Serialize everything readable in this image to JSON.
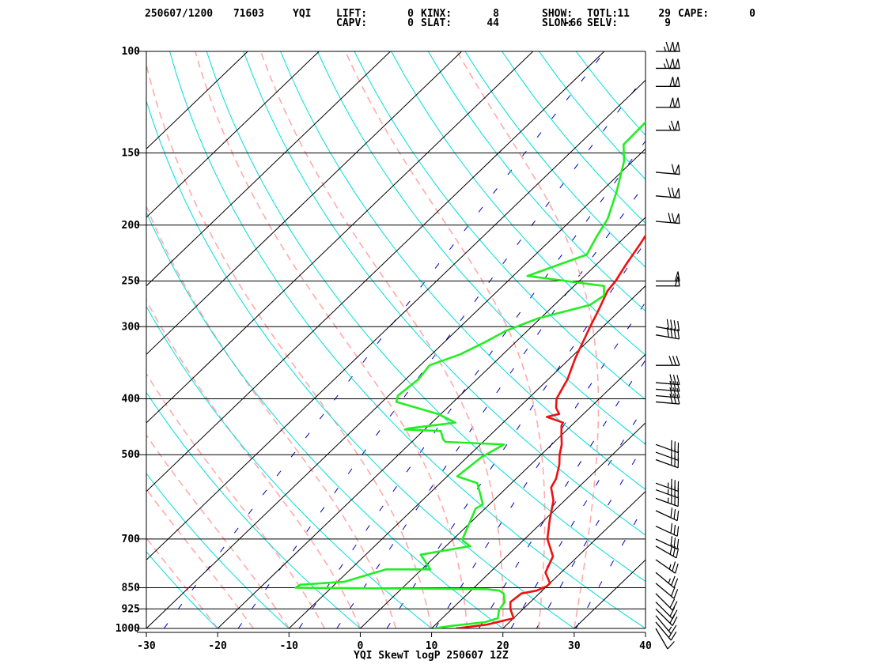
{
  "header": {
    "line1": [
      {
        "name": "datetime",
        "text": "250607/1200"
      },
      {
        "name": "station-number",
        "text": "71603"
      },
      {
        "name": "station-id",
        "text": "YQI"
      },
      {
        "name": "lift-label",
        "text": "LIFT:"
      },
      {
        "name": "lift-value",
        "text": "0"
      },
      {
        "name": "kinx-label",
        "text": "KINX:"
      },
      {
        "name": "kinx-value",
        "text": "8"
      },
      {
        "name": "show-label",
        "text": "SHOW:"
      },
      {
        "name": "show-value",
        "text": "11"
      },
      {
        "name": "totl-label",
        "text": "TOTL:"
      },
      {
        "name": "totl-value",
        "text": "29"
      },
      {
        "name": "cape-label",
        "text": "CAPE:"
      },
      {
        "name": "cape-value",
        "text": "0"
      }
    ],
    "line2": [
      {
        "name": "capv-label",
        "text": "CAPV:"
      },
      {
        "name": "capv-value",
        "text": "0"
      },
      {
        "name": "slat-label",
        "text": "SLAT:"
      },
      {
        "name": "slat-value",
        "text": "44"
      },
      {
        "name": "slon-label",
        "text": "SLON:"
      },
      {
        "name": "slon-value",
        "text": "-66"
      },
      {
        "name": "selv-label",
        "text": "SELV:"
      },
      {
        "name": "selv-value",
        "text": "9"
      }
    ]
  },
  "footer_title": "YQI SkewT logP 250607 12Z",
  "colors": {
    "temperature": "#ee1111",
    "dewpoint": "#22ee22",
    "isotherm": "#000000",
    "dry_adiabat": "#00dddd",
    "moist_adiabat": "#ffaaaa",
    "mixing_ratio": "#0000bb",
    "wind_barb": "#000000"
  },
  "chart_data": {
    "type": "line",
    "title": "YQI SkewT logP 250607 12Z",
    "x_ticks": [
      -30,
      -20,
      -10,
      0,
      10,
      20,
      30,
      40
    ],
    "y_ticks": [
      100,
      150,
      200,
      250,
      300,
      400,
      500,
      700,
      850,
      925,
      1000
    ],
    "xlim": [
      -30,
      40
    ],
    "ylim": [
      1000,
      100
    ],
    "y_scale": "log",
    "series": [
      {
        "id": "temperature",
        "points": [
          [
            1000,
            13.4
          ],
          [
            985,
            17.2
          ],
          [
            960,
            20.0
          ],
          [
            925,
            18.2
          ],
          [
            900,
            17.2
          ],
          [
            870,
            17.5
          ],
          [
            860,
            19.2
          ],
          [
            845,
            20.0
          ],
          [
            835,
            20.0
          ],
          [
            800,
            17.8
          ],
          [
            750,
            16.5
          ],
          [
            700,
            13.2
          ],
          [
            650,
            10.8
          ],
          [
            600,
            8.4
          ],
          [
            570,
            6.2
          ],
          [
            550,
            5.6
          ],
          [
            520,
            4.0
          ],
          [
            500,
            2.6
          ],
          [
            480,
            1.4
          ],
          [
            460,
            -0.2
          ],
          [
            445,
            -1.4
          ],
          [
            440,
            -1.6
          ],
          [
            430,
            -4.7
          ],
          [
            425,
            -3.4
          ],
          [
            415,
            -4.7
          ],
          [
            400,
            -6.0
          ],
          [
            370,
            -7.3
          ],
          [
            340,
            -9.3
          ],
          [
            300,
            -11.8
          ],
          [
            280,
            -13.1
          ],
          [
            260,
            -14.6
          ],
          [
            250,
            -14.9
          ],
          [
            235,
            -15.8
          ],
          [
            215,
            -16.9
          ],
          [
            200,
            -17.9
          ],
          [
            190,
            -19.0
          ],
          [
            175,
            -19.7
          ],
          [
            165,
            -20.0
          ],
          [
            155,
            -21.3
          ],
          [
            148,
            -22.2
          ],
          [
            140,
            -23.2
          ],
          [
            130,
            -23.2
          ],
          [
            120,
            -24.7
          ],
          [
            110,
            -25.6
          ],
          [
            105,
            -27.5
          ],
          [
            100,
            -27.5
          ]
        ]
      },
      {
        "id": "dewpoint",
        "points": [
          [
            1000,
            10.3
          ],
          [
            990,
            12.4
          ],
          [
            975,
            16.6
          ],
          [
            960,
            17.8
          ],
          [
            930,
            16.8
          ],
          [
            900,
            16.4
          ],
          [
            870,
            15.0
          ],
          [
            860,
            14.0
          ],
          [
            855,
            12.0
          ],
          [
            850,
            -15.0
          ],
          [
            840,
            -14.8
          ],
          [
            830,
            -9.0
          ],
          [
            790,
            -5.0
          ],
          [
            790,
            1.2
          ],
          [
            745,
            -2.3
          ],
          [
            720,
            3.4
          ],
          [
            705,
            1.6
          ],
          [
            700,
            1.3
          ],
          [
            620,
            -1.3
          ],
          [
            610,
            -0.9
          ],
          [
            590,
            -2.4
          ],
          [
            560,
            -4.8
          ],
          [
            545,
            -8.6
          ],
          [
            505,
            -8.0
          ],
          [
            480,
            -6.7
          ],
          [
            475,
            -15.3
          ],
          [
            470,
            -16.0
          ],
          [
            455,
            -17.5
          ],
          [
            452,
            -22.8
          ],
          [
            450,
            -22.3
          ],
          [
            440,
            -16.7
          ],
          [
            425,
            -20.4
          ],
          [
            405,
            -28.0
          ],
          [
            395,
            -28.7
          ],
          [
            370,
            -28.2
          ],
          [
            350,
            -28.7
          ],
          [
            335,
            -26.0
          ],
          [
            320,
            -24.4
          ],
          [
            305,
            -23.0
          ],
          [
            290,
            -20.3
          ],
          [
            275,
            -15.0
          ],
          [
            265,
            -14.4
          ],
          [
            255,
            -15.8
          ],
          [
            245,
            -28.0
          ],
          [
            225,
            -22.8
          ],
          [
            210,
            -24.0
          ],
          [
            195,
            -25.1
          ],
          [
            175,
            -27.8
          ],
          [
            155,
            -31.2
          ],
          [
            145,
            -33.7
          ],
          [
            130,
            -33.9
          ],
          [
            120,
            -36.4
          ],
          [
            110,
            -39.8
          ],
          [
            105,
            -40.0
          ],
          [
            100,
            -40.4
          ]
        ]
      }
    ],
    "wind_barbs": [
      {
        "p": 100,
        "dir": 270,
        "kt": 115
      },
      {
        "p": 107,
        "dir": 270,
        "kt": 115
      },
      {
        "p": 115,
        "dir": 270,
        "kt": 100
      },
      {
        "p": 125,
        "dir": 270,
        "kt": 100
      },
      {
        "p": 137,
        "dir": 270,
        "kt": 65
      },
      {
        "p": 162,
        "dir": 275,
        "kt": 60
      },
      {
        "p": 178,
        "dir": 275,
        "kt": 70
      },
      {
        "p": 197,
        "dir": 275,
        "kt": 70
      },
      {
        "p": 250,
        "dir": 270,
        "kt": 50
      },
      {
        "p": 255,
        "dir": 270,
        "kt": 50
      },
      {
        "p": 300,
        "dir": 280,
        "kt": 40
      },
      {
        "p": 310,
        "dir": 280,
        "kt": 40
      },
      {
        "p": 350,
        "dir": 270,
        "kt": 30
      },
      {
        "p": 375,
        "dir": 275,
        "kt": 30
      },
      {
        "p": 385,
        "dir": 275,
        "kt": 30
      },
      {
        "p": 395,
        "dir": 275,
        "kt": 30
      },
      {
        "p": 405,
        "dir": 275,
        "kt": 30
      },
      {
        "p": 480,
        "dir": 290,
        "kt": 30
      },
      {
        "p": 495,
        "dir": 290,
        "kt": 30
      },
      {
        "p": 510,
        "dir": 290,
        "kt": 30
      },
      {
        "p": 560,
        "dir": 290,
        "kt": 35
      },
      {
        "p": 575,
        "dir": 290,
        "kt": 35
      },
      {
        "p": 595,
        "dir": 290,
        "kt": 35
      },
      {
        "p": 625,
        "dir": 295,
        "kt": 30
      },
      {
        "p": 665,
        "dir": 295,
        "kt": 30
      },
      {
        "p": 700,
        "dir": 295,
        "kt": 30
      },
      {
        "p": 720,
        "dir": 300,
        "kt": 30
      },
      {
        "p": 760,
        "dir": 305,
        "kt": 25
      },
      {
        "p": 800,
        "dir": 310,
        "kt": 25
      },
      {
        "p": 835,
        "dir": 310,
        "kt": 20
      },
      {
        "p": 870,
        "dir": 315,
        "kt": 20
      },
      {
        "p": 900,
        "dir": 315,
        "kt": 20
      },
      {
        "p": 925,
        "dir": 315,
        "kt": 20
      },
      {
        "p": 950,
        "dir": 320,
        "kt": 15
      },
      {
        "p": 975,
        "dir": 320,
        "kt": 15
      },
      {
        "p": 1000,
        "dir": 330,
        "kt": 10
      }
    ],
    "isotherms_c": [
      -100,
      -90,
      -80,
      -70,
      -60,
      -50,
      -40,
      -30,
      -20,
      -10,
      0,
      10,
      20,
      30,
      40
    ],
    "dry_adiabats_c": [
      -30,
      -20,
      -10,
      0,
      10,
      20,
      30,
      40,
      50,
      60,
      70,
      80,
      90,
      100,
      110,
      120,
      130,
      140,
      150
    ],
    "moist_adiabats_c": [
      -20,
      -15,
      -10,
      -5,
      0,
      5,
      10,
      15,
      20,
      25,
      30
    ],
    "mixing_ratios_gkg": [
      0.4,
      1,
      2,
      3,
      5,
      8,
      12,
      16,
      20,
      28
    ]
  }
}
